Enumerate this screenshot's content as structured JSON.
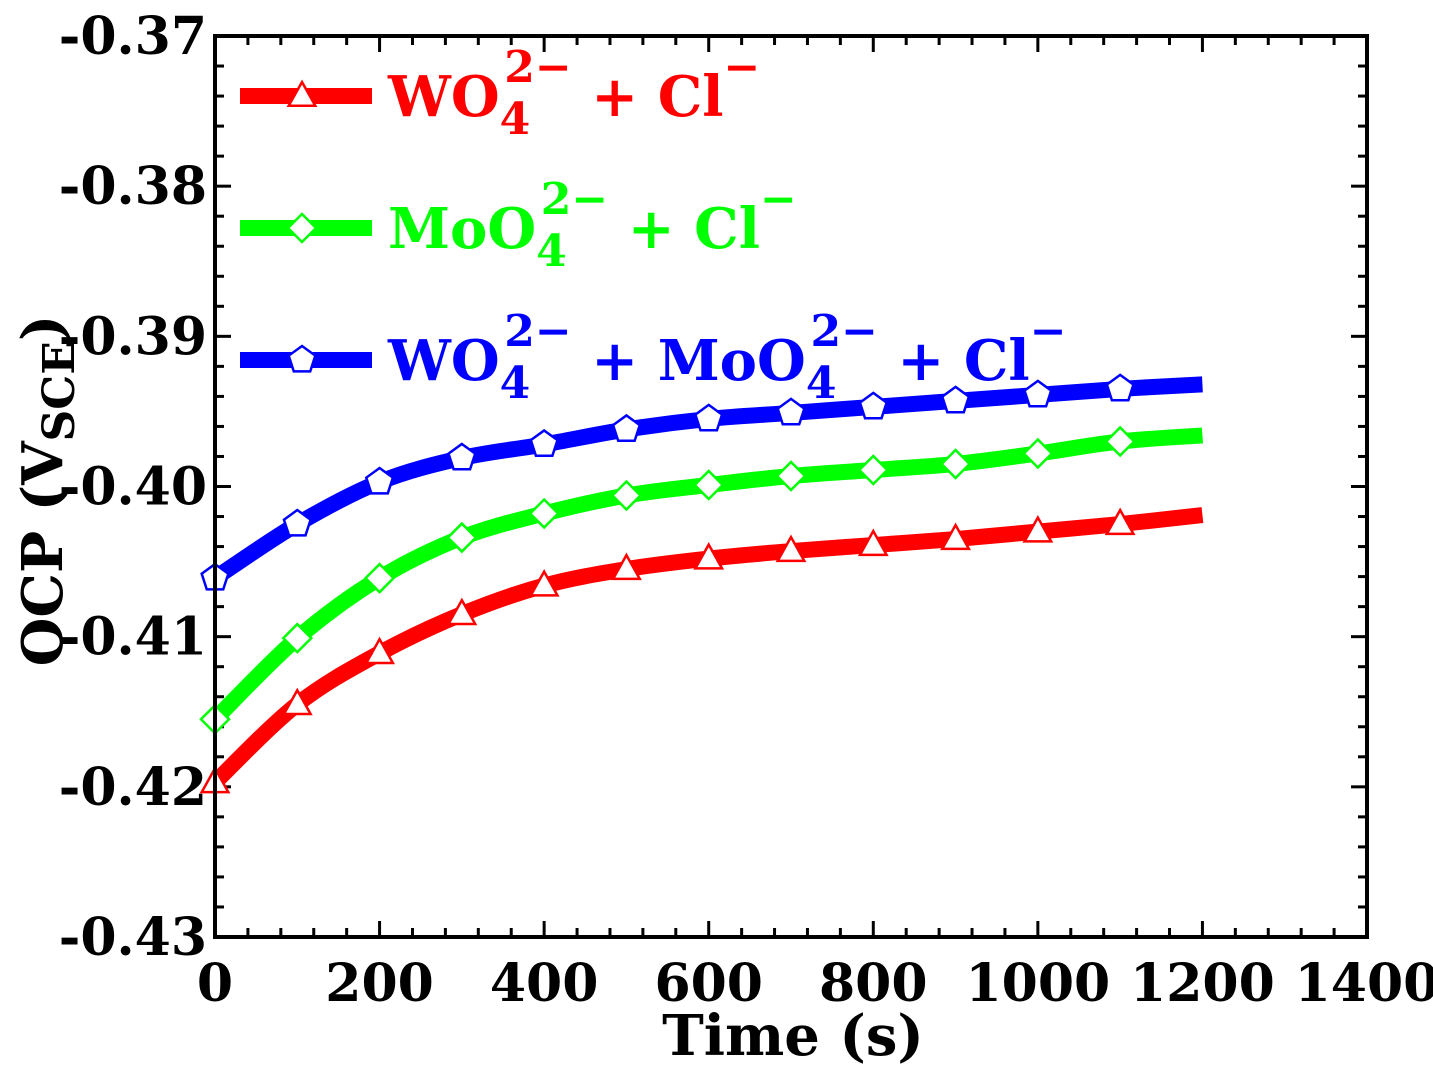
{
  "chart_data": {
    "type": "line",
    "title": "",
    "xlabel": "Time (s)",
    "ylabel_main": "OCP (V",
    "ylabel_sub": "SCE",
    "ylabel_close": ")",
    "xlim": [
      0,
      1400
    ],
    "ylim": [
      -0.43,
      -0.37
    ],
    "x_ticks": [
      0,
      200,
      400,
      600,
      800,
      1000,
      1200,
      1400
    ],
    "x_tick_labels": [
      "0",
      "200",
      "400",
      "600",
      "800",
      "1000",
      "1200",
      "1400"
    ],
    "y_ticks": [
      -0.43,
      -0.42,
      -0.41,
      -0.4,
      -0.39,
      -0.38,
      -0.37
    ],
    "y_tick_labels": [
      "-0.43",
      "-0.42",
      "-0.41",
      "-0.40",
      "-0.39",
      "-0.38",
      "-0.37"
    ],
    "legend_position": "top-left",
    "series": [
      {
        "name": "WO4 2- + Cl-",
        "label_parts": [
          "WO",
          "4",
          "2−",
          " + Cl",
          "−"
        ],
        "color": "#ff0000",
        "marker": "triangle",
        "x": [
          0,
          100,
          200,
          300,
          400,
          500,
          600,
          700,
          800,
          900,
          1000,
          1100,
          1200
        ],
        "values": [
          -0.4197,
          -0.4145,
          -0.4111,
          -0.4085,
          -0.4066,
          -0.4055,
          -0.4048,
          -0.4043,
          -0.4039,
          -0.4035,
          -0.403,
          -0.4025,
          -0.4019
        ]
      },
      {
        "name": "MoO4 2- + Cl-",
        "label_parts": [
          "MoO",
          "4",
          "2−",
          " + Cl",
          "−"
        ],
        "color": "#00ff00",
        "marker": "diamond",
        "x": [
          0,
          100,
          200,
          300,
          400,
          500,
          600,
          700,
          800,
          900,
          1000,
          1100,
          1200
        ],
        "values": [
          -0.4155,
          -0.4101,
          -0.4061,
          -0.4034,
          -0.4018,
          -0.4006,
          -0.3999,
          -0.3993,
          -0.3989,
          -0.3985,
          -0.3978,
          -0.397,
          -0.3966
        ]
      },
      {
        "name": "WO4 2- + MoO4 2- + Cl-",
        "label_parts": [
          "WO",
          "4",
          "2−",
          " + MoO",
          "4",
          "2−",
          " + Cl",
          "−"
        ],
        "color": "#0000ff",
        "marker": "pentagon",
        "x": [
          0,
          100,
          200,
          300,
          400,
          500,
          600,
          700,
          800,
          900,
          1000,
          1100,
          1200
        ],
        "values": [
          -0.4061,
          -0.4025,
          -0.3997,
          -0.3981,
          -0.3972,
          -0.3962,
          -0.3955,
          -0.3951,
          -0.3947,
          -0.3943,
          -0.3939,
          -0.3935,
          -0.3932
        ]
      }
    ]
  }
}
